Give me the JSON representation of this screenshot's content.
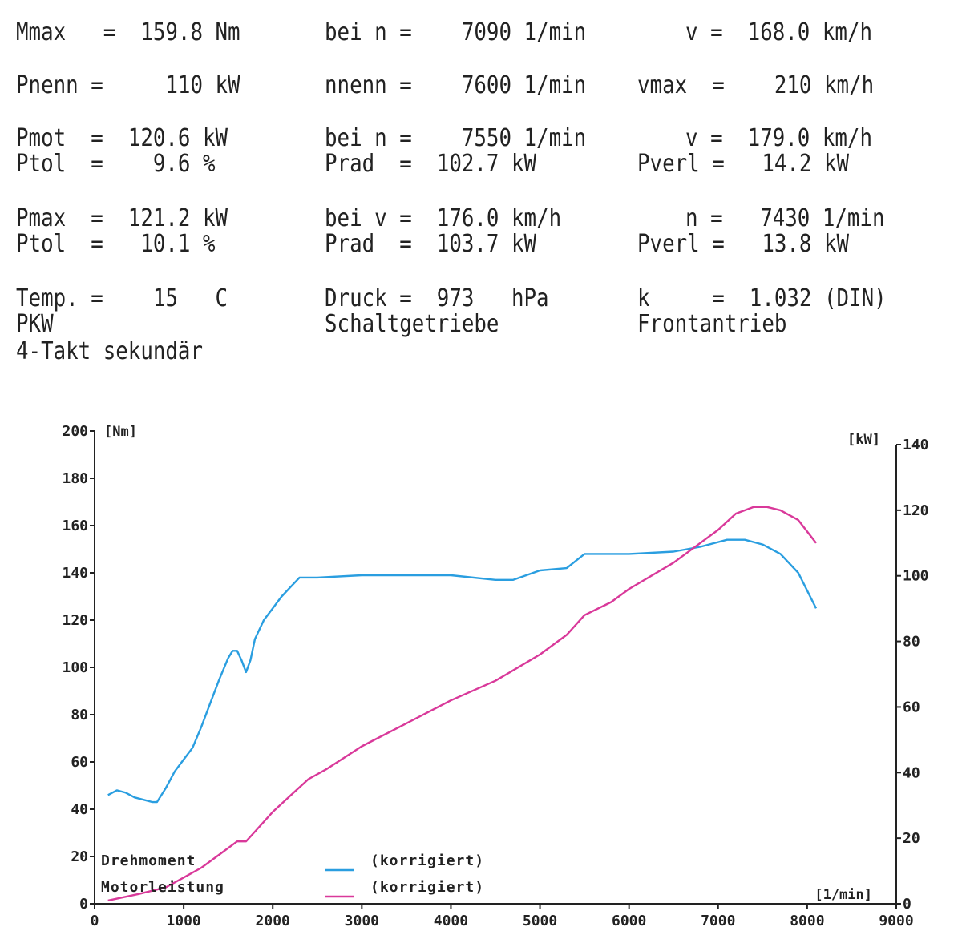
{
  "header": {
    "rows": [
      {
        "text": "Mmax   =  159.8 Nm",
        "col": 0,
        "row": 0
      },
      {
        "text": "bei n =    7090 1/min",
        "col": 1,
        "row": 0
      },
      {
        "text": "v =  168.0 km/h",
        "col": 2,
        "row": 0
      },
      {
        "text": "Pnenn =     110 kW",
        "col": 0,
        "row": 1
      },
      {
        "text": "nnenn =    7600 1/min",
        "col": 1,
        "row": 1
      },
      {
        "text": "vmax  =    210 km/h",
        "col": 2,
        "row": 1
      },
      {
        "text": "Pmot  =  120.6 kW",
        "col": 0,
        "row": 2
      },
      {
        "text": "bei n =    7550 1/min",
        "col": 1,
        "row": 2
      },
      {
        "text": "v =  179.0 km/h",
        "col": 2,
        "row": 2
      },
      {
        "text": "Ptol  =    9.6 %",
        "col": 0,
        "row": 3
      },
      {
        "text": "Prad  =  102.7 kW",
        "col": 1,
        "row": 3
      },
      {
        "text": "Pverl =   14.2 kW",
        "col": 2,
        "row": 3
      },
      {
        "text": "Pmax  =  121.2 kW",
        "col": 0,
        "row": 4
      },
      {
        "text": "bei v =  176.0 km/h",
        "col": 1,
        "row": 4
      },
      {
        "text": "n =   7430 1/min",
        "col": 2,
        "row": 4
      },
      {
        "text": "Ptol  =   10.1 %",
        "col": 0,
        "row": 5
      },
      {
        "text": "Prad  =  103.7 kW",
        "col": 1,
        "row": 5
      },
      {
        "text": "Pverl =   13.8 kW",
        "col": 2,
        "row": 5
      },
      {
        "text": "Temp. =    15   C",
        "col": 0,
        "row": 6
      },
      {
        "text": "Druck =  973   hPa",
        "col": 1,
        "row": 6
      },
      {
        "text": "k     =  1.032 (DIN)",
        "col": 2,
        "row": 6
      },
      {
        "text": "PKW",
        "col": 0,
        "row": 7
      },
      {
        "text": "Schaltgetriebe",
        "col": 1,
        "row": 7
      },
      {
        "text": "Frontantrieb",
        "col": 2,
        "row": 7
      },
      {
        "text": "4-Takt sekundär",
        "col": 0,
        "row": 8
      }
    ]
  },
  "chart_data": {
    "type": "line",
    "xlabel": "[1/min]",
    "ylabel_left": "[Nm]",
    "ylabel_right": "[kW]",
    "xlim": [
      0,
      9000
    ],
    "ylim_left": [
      0,
      200
    ],
    "ylim_right": [
      0,
      140
    ],
    "x_ticks": [
      "0",
      "1000",
      "2000",
      "3000",
      "4000",
      "5000",
      "6000",
      "7000",
      "8000",
      "9000"
    ],
    "y_left_ticks": [
      "0",
      "20",
      "40",
      "60",
      "80",
      "100",
      "120",
      "140",
      "160",
      "180",
      "200"
    ],
    "y_right_ticks": [
      "0",
      "20",
      "40",
      "60",
      "80",
      "100",
      "120",
      "140"
    ],
    "grid": false,
    "series": [
      {
        "name": "Drehmoment",
        "legend_label": "(korrigiert)",
        "axis": "left",
        "color": "#2a9ee0",
        "x": [
          150,
          250,
          350,
          450,
          550,
          650,
          700,
          800,
          900,
          1000,
          1100,
          1200,
          1300,
          1400,
          1500,
          1550,
          1600,
          1650,
          1700,
          1750,
          1800,
          1900,
          2000,
          2100,
          2200,
          2300,
          2500,
          3000,
          3500,
          4000,
          4500,
          4700,
          5000,
          5300,
          5500,
          5800,
          6000,
          6500,
          6800,
          7000,
          7100,
          7300,
          7500,
          7700,
          7900,
          8100
        ],
        "y": [
          46,
          48,
          47,
          45,
          44,
          43,
          43,
          49,
          56,
          61,
          66,
          75,
          85,
          95,
          104,
          107,
          107,
          103,
          98,
          103,
          112,
          120,
          125,
          130,
          134,
          138,
          138,
          139,
          139,
          139,
          137,
          137,
          141,
          142,
          148,
          148,
          148,
          149,
          151,
          153,
          154,
          154,
          152,
          148,
          140,
          125
        ]
      },
      {
        "name": "Motorleistung",
        "legend_label": "(korrigiert)",
        "axis": "right",
        "color": "#d9399a",
        "x": [
          150,
          500,
          800,
          1000,
          1200,
          1400,
          1600,
          1700,
          1800,
          2000,
          2200,
          2400,
          2600,
          3000,
          3500,
          4000,
          4500,
          5000,
          5300,
          5500,
          5800,
          6000,
          6500,
          7000,
          7200,
          7400,
          7550,
          7700,
          7900,
          8100
        ],
        "y": [
          1,
          3,
          5,
          8,
          11,
          15,
          19,
          19,
          22,
          28,
          33,
          38,
          41,
          48,
          55,
          62,
          68,
          76,
          82,
          88,
          92,
          96,
          104,
          114,
          119,
          121,
          121,
          120,
          117,
          110
        ]
      }
    ]
  },
  "legend": [
    {
      "name": "Drehmoment",
      "label": "(korrigiert)",
      "color": "#2a9ee0"
    },
    {
      "name": "Motorleistung",
      "label": "(korrigiert)",
      "color": "#d9399a"
    }
  ]
}
